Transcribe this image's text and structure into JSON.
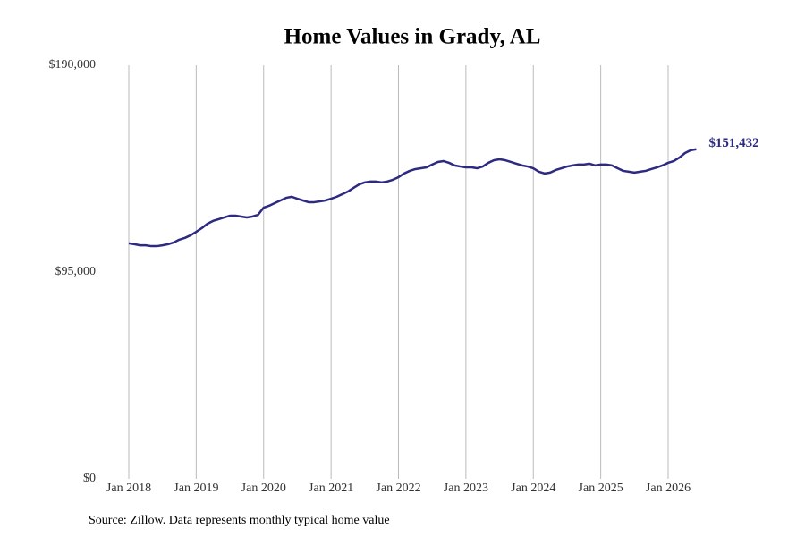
{
  "chart_data": {
    "type": "line",
    "title": "Home Values in Grady, AL",
    "source": "Source: Zillow. Data represents monthly typical home value",
    "x": [
      "2018-01",
      "2018-02",
      "2018-03",
      "2018-04",
      "2018-05",
      "2018-06",
      "2018-07",
      "2018-08",
      "2018-09",
      "2018-10",
      "2018-11",
      "2018-12",
      "2019-01",
      "2019-02",
      "2019-03",
      "2019-04",
      "2019-05",
      "2019-06",
      "2019-07",
      "2019-08",
      "2019-09",
      "2019-10",
      "2019-11",
      "2019-12",
      "2020-01",
      "2020-02",
      "2020-03",
      "2020-04",
      "2020-05",
      "2020-06",
      "2020-07",
      "2020-08",
      "2020-09",
      "2020-10",
      "2020-11",
      "2020-12",
      "2021-01",
      "2021-02",
      "2021-03",
      "2021-04",
      "2021-05",
      "2021-06",
      "2021-07",
      "2021-08",
      "2021-09",
      "2021-10",
      "2021-11",
      "2021-12",
      "2022-01",
      "2022-02",
      "2022-03",
      "2022-04",
      "2022-05",
      "2022-06",
      "2022-07",
      "2022-08",
      "2022-09",
      "2022-10",
      "2022-11",
      "2022-12",
      "2023-01",
      "2023-02",
      "2023-03",
      "2023-04",
      "2023-05",
      "2023-06",
      "2023-07",
      "2023-08",
      "2023-09",
      "2023-10",
      "2023-11",
      "2023-12",
      "2024-01",
      "2024-02",
      "2024-03",
      "2024-04",
      "2024-05",
      "2024-06",
      "2024-07",
      "2024-08",
      "2024-09",
      "2024-10",
      "2024-11",
      "2024-12",
      "2025-01",
      "2025-02",
      "2025-03",
      "2025-04",
      "2025-05",
      "2025-06",
      "2025-07",
      "2025-08",
      "2025-09",
      "2025-10",
      "2025-11",
      "2025-12",
      "2026-01",
      "2026-02",
      "2026-03",
      "2026-04",
      "2026-05",
      "2026-06"
    ],
    "series": [
      {
        "name": "Home value",
        "color": "#2d2a80",
        "values": [
          108200,
          107800,
          107300,
          107300,
          106900,
          106900,
          107300,
          107800,
          108600,
          109900,
          110700,
          111900,
          113500,
          115200,
          117200,
          118500,
          119300,
          120100,
          120900,
          120900,
          120500,
          120100,
          120500,
          121300,
          124600,
          125500,
          126700,
          127900,
          129100,
          129600,
          128700,
          127900,
          127100,
          127100,
          127500,
          127900,
          128700,
          129600,
          130800,
          132000,
          133700,
          135300,
          136200,
          136600,
          136600,
          136200,
          136600,
          137400,
          138600,
          140300,
          141500,
          142300,
          142700,
          143100,
          144400,
          145600,
          146000,
          145200,
          144000,
          143500,
          143100,
          143100,
          142700,
          143500,
          145200,
          146400,
          146800,
          146400,
          145600,
          144800,
          144000,
          143500,
          142700,
          141100,
          140300,
          140700,
          141900,
          142700,
          143500,
          144000,
          144400,
          144400,
          144800,
          144000,
          144400,
          144400,
          144000,
          142700,
          141500,
          141100,
          140700,
          141100,
          141500,
          142300,
          143100,
          144000,
          145200,
          146000,
          147600,
          149700,
          151000,
          151432
        ],
        "value_labels": [
          null,
          null,
          null,
          null,
          null,
          null,
          null,
          null,
          null,
          null,
          null,
          null,
          null,
          null,
          null,
          null,
          null,
          null,
          null,
          null,
          null,
          null,
          null,
          null,
          null,
          null,
          null,
          null,
          null,
          null,
          null,
          null,
          null,
          null,
          null,
          null,
          null,
          null,
          null,
          null,
          null,
          null,
          null,
          null,
          null,
          null,
          null,
          null,
          null,
          null,
          null,
          null,
          null,
          null,
          null,
          null,
          null,
          null,
          null,
          null,
          null,
          null,
          null,
          null,
          null,
          null,
          null,
          null,
          null,
          null,
          null,
          null,
          null,
          null,
          null,
          null,
          null,
          null,
          null,
          null,
          null,
          null,
          null,
          null,
          null,
          null,
          null,
          null,
          null,
          null,
          null,
          null,
          null,
          null,
          null,
          null,
          null,
          null,
          null,
          null,
          null,
          "$151,432"
        ]
      }
    ],
    "xticks": [
      {
        "value": "2018-01",
        "label": "Jan 2018"
      },
      {
        "value": "2019-01",
        "label": "Jan 2019"
      },
      {
        "value": "2020-01",
        "label": "Jan 2020"
      },
      {
        "value": "2021-01",
        "label": "Jan 2021"
      },
      {
        "value": "2022-01",
        "label": "Jan 2022"
      },
      {
        "value": "2023-01",
        "label": "Jan 2023"
      },
      {
        "value": "2024-01",
        "label": "Jan 2024"
      },
      {
        "value": "2025-01",
        "label": "Jan 2025"
      },
      {
        "value": "2026-01",
        "label": "Jan 2026"
      }
    ],
    "ylim": [
      0,
      190000
    ],
    "yticks": [
      {
        "value": 0,
        "label": "$0"
      },
      {
        "value": 95000,
        "label": "$95,000"
      },
      {
        "value": 190000,
        "label": "$190,000"
      }
    ],
    "grid": "x"
  }
}
